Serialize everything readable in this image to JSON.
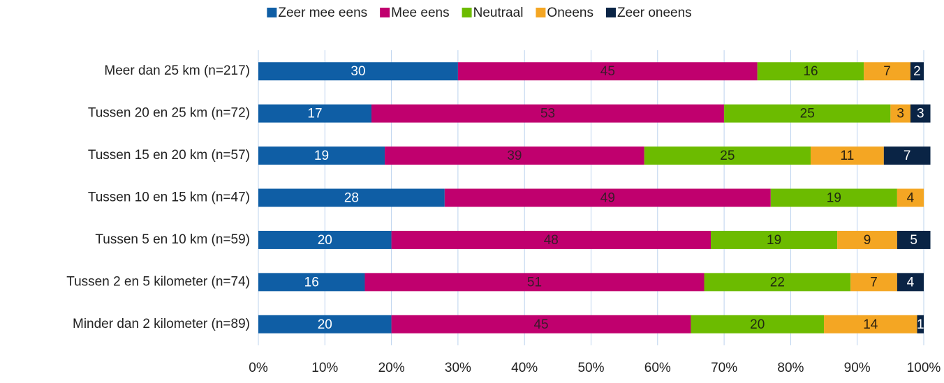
{
  "chart_data": {
    "type": "stacked_barh",
    "categories": [
      "Meer dan 25 km (n=217)",
      "Tussen 20 en 25 km (n=72)",
      "Tussen 15 en 20 km (n=57)",
      "Tussen 10 en 15 km (n=47)",
      "Tussen 5 en 10 km (n=59)",
      "Tussen 2 en 5 kilometer (n=74)",
      "Minder dan 2 kilometer (n=89)"
    ],
    "series": [
      {
        "name": "Zeer mee eens",
        "color": "#0f5ea5",
        "label_color": "#ffffff",
        "values": [
          30,
          17,
          19,
          28,
          20,
          16,
          20
        ]
      },
      {
        "name": "Mee eens",
        "color": "#c0006e",
        "label_color": "#3a1a2a",
        "values": [
          45,
          53,
          39,
          49,
          48,
          51,
          45
        ]
      },
      {
        "name": "Neutraal",
        "color": "#6cbb00",
        "label_color": "#1f2a10",
        "values": [
          16,
          25,
          25,
          19,
          19,
          22,
          20
        ]
      },
      {
        "name": "Oneens",
        "color": "#f4a623",
        "label_color": "#2a2010",
        "values": [
          7,
          3,
          11,
          4,
          9,
          7,
          14
        ]
      },
      {
        "name": "Zeer oneens",
        "color": "#0a2445",
        "label_color": "#ffffff",
        "values": [
          2,
          3,
          7,
          null,
          5,
          4,
          1
        ]
      }
    ],
    "xlim": [
      0,
      100
    ],
    "xticks": [
      {
        "value": 0,
        "label": "0%"
      },
      {
        "value": 10,
        "label": "10%"
      },
      {
        "value": 20,
        "label": "20%"
      },
      {
        "value": 30,
        "label": "30%"
      },
      {
        "value": 40,
        "label": "40%"
      },
      {
        "value": 50,
        "label": "50%"
      },
      {
        "value": 60,
        "label": "60%"
      },
      {
        "value": 70,
        "label": "70%"
      },
      {
        "value": 80,
        "label": "80%"
      },
      {
        "value": 90,
        "label": "90%"
      },
      {
        "value": 100,
        "label": "100%"
      }
    ],
    "grid": true,
    "legend": "top"
  }
}
